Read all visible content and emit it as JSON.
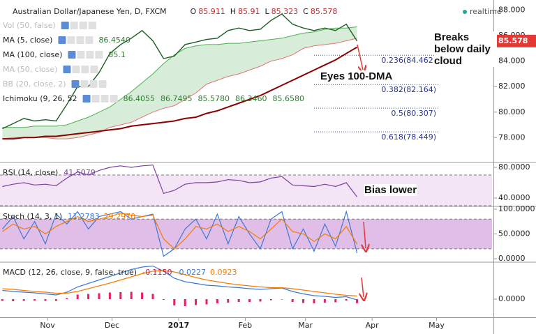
{
  "chart_data": [
    {
      "type": "line",
      "title": "Australian Dollar/Japanese Yen, D, FXCM",
      "status": "realtime",
      "readout": [
        {
          "label": "O",
          "value": 85.911
        },
        {
          "label": "H",
          "value": 85.91
        },
        {
          "label": "L",
          "value": 85.323
        },
        {
          "label": "C",
          "value": 85.578
        }
      ],
      "indicators": [
        {
          "name": "Vol (50, false)",
          "visible": false,
          "readout": []
        },
        {
          "name": "MA (5, close)",
          "visible": true,
          "readout": [
            "86.4540"
          ]
        },
        {
          "name": "MA (100, close)",
          "visible": true,
          "readout": [
            "85.1"
          ]
        },
        {
          "name": "MA (50, close)",
          "visible": false,
          "readout": []
        },
        {
          "name": "BB (20, close, 2)",
          "visible": false,
          "readout": []
        },
        {
          "name": "Ichimoku (9, 26, 52",
          "visible": true,
          "readout": [
            "86.4055",
            "86.7495",
            "85.5780",
            "86.3460",
            "85.6580"
          ]
        }
      ],
      "x": [
        10,
        15,
        20,
        25,
        30,
        35,
        40,
        45,
        50,
        55,
        60,
        65,
        70,
        75,
        80,
        85,
        90,
        95,
        100,
        105,
        110,
        115,
        120,
        125,
        130,
        135,
        140,
        145,
        150,
        155,
        160,
        165,
        170,
        175
      ],
      "xlim": [
        8.9,
        237.8
      ],
      "xticks": [
        {
          "value": 31,
          "label": "Nov"
        },
        {
          "value": 61,
          "label": "Dec"
        },
        {
          "value": 92,
          "label": "2017"
        },
        {
          "value": 123,
          "label": "Feb"
        },
        {
          "value": 151,
          "label": "Mar"
        },
        {
          "value": 182,
          "label": "Apr"
        },
        {
          "value": 212,
          "label": "May"
        }
      ],
      "ylim": [
        76.1,
        88.8
      ],
      "yticks": [
        {
          "value": 88,
          "label": "88.000"
        },
        {
          "value": 86,
          "label": "86.000"
        },
        {
          "value": 84,
          "label": "84.000"
        },
        {
          "value": 82,
          "label": "82.000"
        },
        {
          "value": 80,
          "label": "80.000"
        },
        {
          "value": 78,
          "label": "78.000"
        }
      ],
      "grid": false,
      "color": "#1b5e20",
      "values": [
        78.7,
        79.1,
        79.5,
        79.3,
        79.4,
        79.3,
        80.6,
        82.0,
        82.0,
        83.1,
        84.6,
        85.3,
        85.8,
        86.4,
        85.6,
        84.2,
        84.4,
        85.3,
        85.5,
        85.7,
        85.8,
        86.4,
        86.6,
        86.4,
        86.5,
        87.2,
        87.7,
        86.9,
        86.6,
        86.4,
        86.6,
        86.4,
        86.9,
        85.578
      ],
      "series": [
        {
          "color": "#8b0000",
          "values": [
            77.9,
            77.9,
            78.0,
            78.0,
            78.1,
            78.1,
            78.2,
            78.3,
            78.4,
            78.5,
            78.6,
            78.7,
            78.9,
            79.0,
            79.1,
            79.2,
            79.3,
            79.5,
            79.6,
            79.9,
            80.1,
            80.4,
            80.7,
            81.0,
            81.3,
            81.7,
            82.1,
            82.5,
            82.9,
            83.3,
            83.7,
            84.1,
            84.6,
            85.1
          ]
        }
      ],
      "cloud": {
        "upper_color": "#4caf50",
        "lower_color": "#e57373",
        "fill": "#c8e6c9",
        "upper": [
          78.8,
          78.8,
          78.8,
          78.9,
          78.9,
          78.9,
          79.0,
          79.3,
          79.6,
          80.0,
          80.4,
          81.0,
          81.6,
          82.3,
          83.0,
          83.8,
          84.5,
          85.0,
          85.2,
          85.3,
          85.3,
          85.4,
          85.4,
          85.5,
          85.6,
          85.7,
          85.8,
          86.0,
          86.2,
          86.3,
          86.5,
          86.6,
          86.6,
          86.7
        ],
        "lower": [
          77.9,
          78.0,
          78.0,
          78.0,
          78.0,
          77.9,
          77.9,
          78.0,
          78.2,
          78.4,
          78.8,
          79.0,
          79.2,
          79.6,
          80.0,
          80.3,
          80.5,
          81.0,
          81.5,
          82.2,
          82.5,
          82.8,
          83.0,
          83.3,
          83.6,
          84.0,
          84.2,
          84.5,
          85.0,
          85.2,
          85.3,
          85.4,
          85.6,
          85.8
        ]
      },
      "fib": [
        {
          "value": 84.462,
          "label": "0.236(84.462)"
        },
        {
          "value": 82.164,
          "label": "0.382(82.164)"
        },
        {
          "value": 80.307,
          "label": "0.5(80.307)"
        },
        {
          "value": 78.449,
          "label": "0.618(78.449)"
        }
      ],
      "annotations": [
        "Breaks below daily cloud",
        "Eyes 100-DMA"
      ]
    },
    {
      "type": "line",
      "title": "RSI (14, close)",
      "readout": [
        {
          "text": "41.5079",
          "color": "#7b3fa0"
        }
      ],
      "ylim": [
        30,
        85.5
      ],
      "yticks": [
        {
          "value": 80,
          "label": "80.0000"
        },
        {
          "value": 40,
          "label": "40.0000"
        }
      ],
      "band": [
        70,
        30
      ],
      "band_color": "#f3e5f5",
      "series": [
        {
          "color": "#7b3fa0",
          "values": [
            55,
            58,
            60,
            57,
            58,
            56,
            66,
            74,
            70,
            76,
            80,
            82,
            80,
            82,
            83,
            46,
            50,
            58,
            60,
            60,
            61,
            64,
            63,
            60,
            61,
            66,
            68,
            57,
            56,
            55,
            58,
            55,
            60,
            41.5079
          ]
        }
      ],
      "annotations": [
        "Bias lower"
      ]
    },
    {
      "type": "line",
      "title": "Stoch (14, 3, 1)",
      "readout": [
        {
          "text": "11.2783",
          "color": "#3c78d8"
        },
        {
          "text": "29.2970",
          "color": "#f57c00"
        }
      ],
      "ylim": [
        -5.6,
        104.2
      ],
      "yticks": [
        {
          "value": 100,
          "label": "100.0000"
        },
        {
          "value": 50,
          "label": "50.0000"
        },
        {
          "value": 0,
          "label": "0.0000"
        }
      ],
      "band": [
        80,
        20
      ],
      "band_color": "#e1bee7",
      "series": [
        {
          "color": "#3c78d8",
          "values": [
            60,
            85,
            40,
            75,
            30,
            90,
            70,
            95,
            60,
            85,
            90,
            95,
            80,
            85,
            90,
            5,
            20,
            60,
            80,
            40,
            90,
            30,
            85,
            50,
            20,
            80,
            95,
            20,
            60,
            15,
            70,
            25,
            95,
            11.2783
          ]
        },
        {
          "color": "#f57c00",
          "values": [
            55,
            70,
            60,
            65,
            50,
            65,
            75,
            85,
            75,
            80,
            85,
            92,
            88,
            85,
            88,
            40,
            20,
            40,
            65,
            60,
            70,
            55,
            65,
            55,
            40,
            60,
            80,
            55,
            50,
            35,
            50,
            40,
            65,
            29.297
          ]
        }
      ]
    },
    {
      "type": "macd",
      "title": "MACD (12, 26, close, 9, false, true)",
      "readout": [
        {
          "text": "-0.1150",
          "color": "#c2185b"
        },
        {
          "text": "-0.0227",
          "color": "#3c78d8"
        },
        {
          "text": "0.0923",
          "color": "#f57c00"
        }
      ],
      "ylim": [
        -0.52,
        1.04
      ],
      "yticks": [
        {
          "value": 0,
          "label": "0.0000"
        }
      ],
      "series": [
        {
          "style": "bar",
          "color": "#e91e63",
          "values": [
            -0.05,
            -0.06,
            -0.05,
            -0.04,
            -0.05,
            -0.05,
            0.03,
            0.13,
            0.15,
            0.17,
            0.19,
            0.2,
            0.21,
            0.19,
            0.15,
            -0.02,
            -0.18,
            -0.2,
            -0.17,
            -0.15,
            -0.12,
            -0.1,
            -0.08,
            -0.08,
            -0.07,
            -0.03,
            -0.01,
            -0.08,
            -0.11,
            -0.12,
            -0.1,
            -0.09,
            -0.04,
            -0.115
          ]
        },
        {
          "style": "line",
          "color": "#3c78d8",
          "values": [
            0.25,
            0.22,
            0.2,
            0.18,
            0.15,
            0.12,
            0.2,
            0.35,
            0.45,
            0.55,
            0.65,
            0.75,
            0.85,
            0.92,
            0.95,
            0.8,
            0.6,
            0.5,
            0.45,
            0.4,
            0.38,
            0.35,
            0.33,
            0.3,
            0.28,
            0.3,
            0.32,
            0.22,
            0.15,
            0.1,
            0.08,
            0.05,
            0.07,
            -0.0227
          ]
        },
        {
          "style": "line",
          "color": "#f57c00",
          "values": [
            0.3,
            0.28,
            0.25,
            0.22,
            0.2,
            0.17,
            0.17,
            0.22,
            0.3,
            0.38,
            0.46,
            0.55,
            0.64,
            0.73,
            0.8,
            0.82,
            0.78,
            0.7,
            0.62,
            0.55,
            0.5,
            0.45,
            0.41,
            0.38,
            0.35,
            0.33,
            0.33,
            0.3,
            0.26,
            0.22,
            0.18,
            0.14,
            0.11,
            0.0923
          ]
        }
      ]
    }
  ]
}
